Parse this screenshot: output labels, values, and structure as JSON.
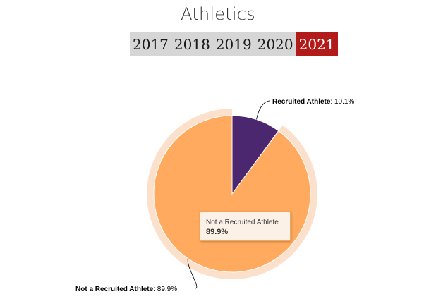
{
  "title": "Athletics",
  "year_tabs": [
    {
      "label": "2017",
      "active": false
    },
    {
      "label": "2018",
      "active": false
    },
    {
      "label": "2019",
      "active": false
    },
    {
      "label": "2020",
      "active": false
    },
    {
      "label": "2021",
      "active": true
    }
  ],
  "colors": {
    "recruited": "#4b2770",
    "not_recruited": "#ffaa5e",
    "halo": "#fbe1cc",
    "active_tab": "#b31b1b",
    "tab_bar": "#d6d6d6"
  },
  "chart_data": {
    "type": "pie",
    "title": "Athletics",
    "slices": [
      {
        "name": "Recruited Athlete",
        "value": 10.1,
        "value_label": "10.1%",
        "color": "#4b2770"
      },
      {
        "name": "Not a Recruited Athlete",
        "value": 89.9,
        "value_label": "89.9%",
        "color": "#ffaa5e",
        "hovered": true
      }
    ],
    "legend": "none",
    "data_labels": true
  },
  "tooltip": {
    "name": "Not a Recruited Athlete",
    "value": "89.9%"
  }
}
